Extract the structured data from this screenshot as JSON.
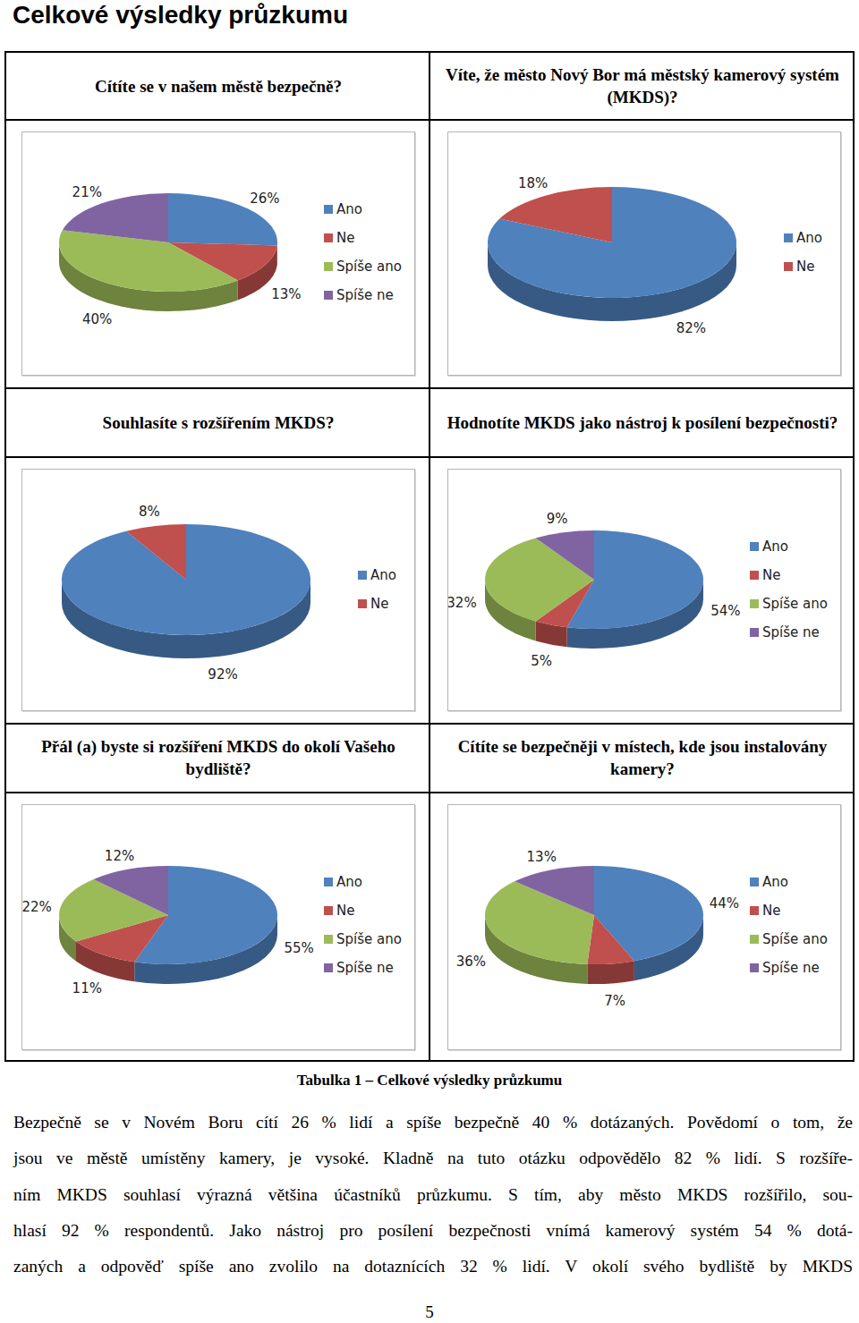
{
  "page": {
    "title": "Celkové výsledky průzkumu",
    "caption": "Tabulka 1 – Celkové výsledky průzkumu",
    "paragraph_lines": [
      "Bezpečně se v Novém Boru cítí 26 % lidí a spíše bezpečně 40 % dotázaných. Povědomí o tom, že",
      "jsou ve městě umístěny kamery, je vysoké. Kladně na tuto otázku odpovědělo 82 % lidí. S rozšíře-",
      "ním MKDS souhlasí výrazná většina účastníků průzkumu. S tím, aby město MKDS rozšířilo, sou-",
      "hlasí 92 % respondentů. Jako nástroj pro posílení bezpečnosti vnímá kamerový systém 54 % dotá-",
      "zaných a odpověď spíše ano zvolilo na dotaznících 32 % lidí. V okolí svého bydliště by MKDS"
    ],
    "page_number": "5"
  },
  "chart_data": [
    {
      "type": "pie",
      "title": "Cítíte se v našem městě bezpečně?",
      "categories": [
        "Ano",
        "Ne",
        "Spíše ano",
        "Spíše ne"
      ],
      "values": [
        26,
        13,
        40,
        21
      ],
      "value_labels": [
        "26%",
        "13%",
        "40%",
        "21%"
      ],
      "colors": [
        "#4f81bd",
        "#c0504d",
        "#9bbb59",
        "#8064a2"
      ],
      "data_labels": true,
      "legend": "right"
    },
    {
      "type": "pie",
      "title": "Víte, že město Nový Bor má městský kamerový systém (MKDS)?",
      "categories": [
        "Ano",
        "Ne"
      ],
      "values": [
        82,
        18
      ],
      "value_labels": [
        "82%",
        "18%"
      ],
      "colors": [
        "#4f81bd",
        "#c0504d"
      ],
      "data_labels": true,
      "legend": "right"
    },
    {
      "type": "pie",
      "title": "Souhlasíte s rozšířením MKDS?",
      "categories": [
        "Ano",
        "Ne"
      ],
      "values": [
        92,
        8
      ],
      "value_labels": [
        "92%",
        "8%"
      ],
      "colors": [
        "#4f81bd",
        "#c0504d"
      ],
      "data_labels": true,
      "legend": "right"
    },
    {
      "type": "pie",
      "title": "Hodnotíte MKDS jako nástroj k posílení bezpečnosti?",
      "categories": [
        "Ano",
        "Ne",
        "Spíše ano",
        "Spíše ne"
      ],
      "values": [
        54,
        5,
        32,
        9
      ],
      "value_labels": [
        "54%",
        "5%",
        "32%",
        "9%"
      ],
      "colors": [
        "#4f81bd",
        "#c0504d",
        "#9bbb59",
        "#8064a2"
      ],
      "data_labels": true,
      "legend": "right"
    },
    {
      "type": "pie",
      "title": "Přál (a) byste si rozšíření MKDS do okolí Vašeho bydliště?",
      "categories": [
        "Ano",
        "Ne",
        "Spíše ano",
        "Spíše ne"
      ],
      "values": [
        55,
        11,
        22,
        12
      ],
      "value_labels": [
        "55%",
        "11%",
        "22%",
        "12%"
      ],
      "colors": [
        "#4f81bd",
        "#c0504d",
        "#9bbb59",
        "#8064a2"
      ],
      "data_labels": true,
      "legend": "right"
    },
    {
      "type": "pie",
      "title": "Cítíte se bezpečněji v místech, kde jsou instalovány kamery?",
      "categories": [
        "Ano",
        "Ne",
        "Spíše ano",
        "Spíše ne"
      ],
      "values": [
        44,
        7,
        36,
        13
      ],
      "value_labels": [
        "44%",
        "7%",
        "36%",
        "13%"
      ],
      "colors": [
        "#4f81bd",
        "#c0504d",
        "#9bbb59",
        "#8064a2"
      ],
      "data_labels": true,
      "legend": "right"
    }
  ]
}
